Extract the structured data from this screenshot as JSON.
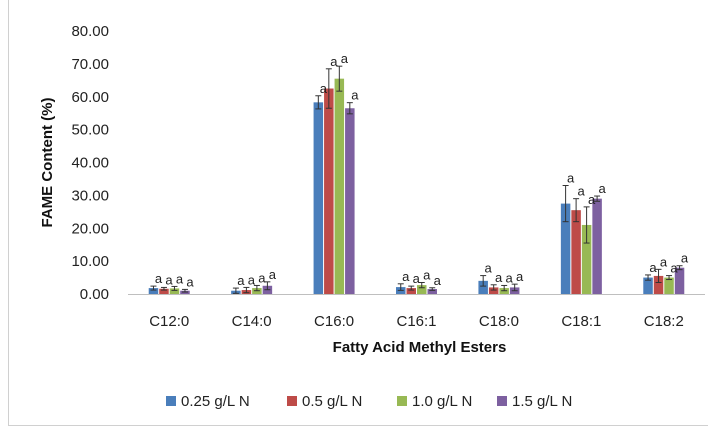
{
  "chart_data": {
    "type": "bar",
    "xlabel": "Fatty Acid Methyl Esters",
    "ylabel": "FAME Content (%)",
    "ylim": [
      0,
      80
    ],
    "yticks": [
      "0.00",
      "10.00",
      "20.00",
      "30.00",
      "40.00",
      "50.00",
      "60.00",
      "70.00",
      "80.00"
    ],
    "grid": false,
    "legend_position": "bottom",
    "categories": [
      "C12:0",
      "C14:0",
      "C16:0",
      "C16:1",
      "C18:0",
      "C18:1",
      "C18:2"
    ],
    "series": [
      {
        "name": "0.25 g/L N",
        "color": "#4a7ebb",
        "values": [
          1.8,
          1.0,
          58.3,
          2.1,
          4.0,
          27.5,
          5.0
        ],
        "errors": [
          0.6,
          0.8,
          2.0,
          1.0,
          1.6,
          5.5,
          0.8
        ],
        "labels": [
          "a",
          "a",
          "a",
          "a",
          "a",
          "a",
          "a"
        ]
      },
      {
        "name": "0.5 g/L N",
        "color": "#be4b48",
        "values": [
          1.6,
          1.2,
          62.5,
          1.8,
          2.0,
          25.5,
          5.5
        ],
        "errors": [
          0.4,
          0.8,
          6.0,
          0.6,
          0.8,
          3.5,
          2.0
        ],
        "labels": [
          "a",
          "a",
          "a",
          "a",
          "a",
          "a",
          "a"
        ]
      },
      {
        "name": "1.0 g/L N",
        "color": "#98b954",
        "values": [
          1.7,
          1.8,
          65.5,
          2.7,
          1.8,
          21.0,
          5.0
        ],
        "errors": [
          0.6,
          0.8,
          3.8,
          0.8,
          0.8,
          5.5,
          0.6
        ],
        "labels": [
          "a",
          "a",
          "a",
          "a",
          "a",
          "a",
          "a"
        ]
      },
      {
        "name": "1.5 g/L N",
        "color": "#7d60a0",
        "values": [
          1.0,
          2.5,
          56.5,
          1.5,
          2.0,
          29.0,
          8.0
        ],
        "errors": [
          0.4,
          1.2,
          1.7,
          0.4,
          1.0,
          0.8,
          0.6
        ],
        "labels": [
          "a",
          "a",
          "a",
          "a",
          "a",
          "a",
          "a"
        ]
      }
    ]
  }
}
